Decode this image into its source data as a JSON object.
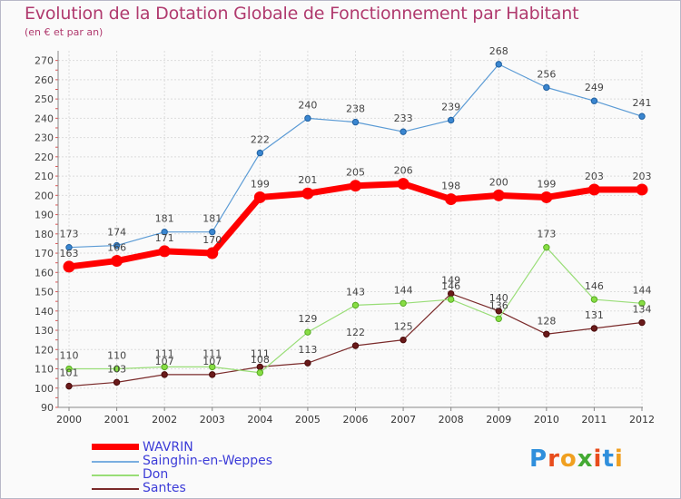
{
  "chart_data": {
    "type": "line",
    "title": "Evolution de la Dotation Globale de Fonctionnement par Habitant",
    "subtitle": "(en € et par an)",
    "x": [
      "2000",
      "2001",
      "2002",
      "2003",
      "2004",
      "2005",
      "2006",
      "2007",
      "2008",
      "2009",
      "2010",
      "2011",
      "2012"
    ],
    "ylim": [
      90,
      275
    ],
    "yticks": [
      90,
      100,
      110,
      120,
      130,
      140,
      150,
      160,
      170,
      180,
      190,
      200,
      210,
      220,
      230,
      240,
      250,
      260,
      270
    ],
    "grid": true,
    "legend_position": "bottom-left",
    "series": [
      {
        "name": "WAVRIN",
        "color": "#ff0000",
        "values": [
          163,
          166,
          171,
          170,
          199,
          201,
          205,
          206,
          198,
          200,
          199,
          203,
          203
        ]
      },
      {
        "name": "Sainghin-en-Weppes",
        "color": "#5b9bd5",
        "values": [
          173,
          174,
          181,
          181,
          222,
          240,
          238,
          233,
          239,
          268,
          256,
          249,
          241
        ]
      },
      {
        "name": "Don",
        "color": "#99dd77",
        "values": [
          110,
          110,
          111,
          111,
          108,
          129,
          143,
          144,
          146,
          136,
          173,
          146,
          144
        ]
      },
      {
        "name": "Santes",
        "color": "#7a2a2a",
        "values": [
          101,
          103,
          107,
          107,
          111,
          113,
          122,
          125,
          149,
          140,
          128,
          131,
          134
        ]
      }
    ],
    "point_labels": {
      "WAVRIN": [
        "163",
        "166",
        "171",
        "170",
        "199",
        "201",
        "205",
        "206",
        "198",
        "200",
        "199",
        "203",
        "203"
      ],
      "Sainghin-en-Weppes": [
        "173",
        "174",
        "181",
        "181",
        "222",
        "240",
        "238",
        "233",
        "239",
        "268",
        "256",
        "249",
        "241"
      ],
      "Don": [
        "110",
        "110",
        "111",
        "111",
        "108",
        "129",
        "143",
        "144",
        "146",
        "136",
        "173",
        "146",
        "144"
      ],
      "Santes": [
        "101",
        "103",
        "107",
        "107",
        "111",
        "113",
        "122",
        "125",
        "149",
        "140",
        "128",
        "131",
        "134"
      ]
    }
  },
  "logo": {
    "letters": [
      "P",
      "r",
      "o",
      "x",
      "i",
      "t",
      "i"
    ],
    "colors": [
      "#2f8fdc",
      "#e84c1c",
      "#f0a020",
      "#44aa33",
      "#e84c1c",
      "#2f8fdc",
      "#f0a020"
    ]
  }
}
